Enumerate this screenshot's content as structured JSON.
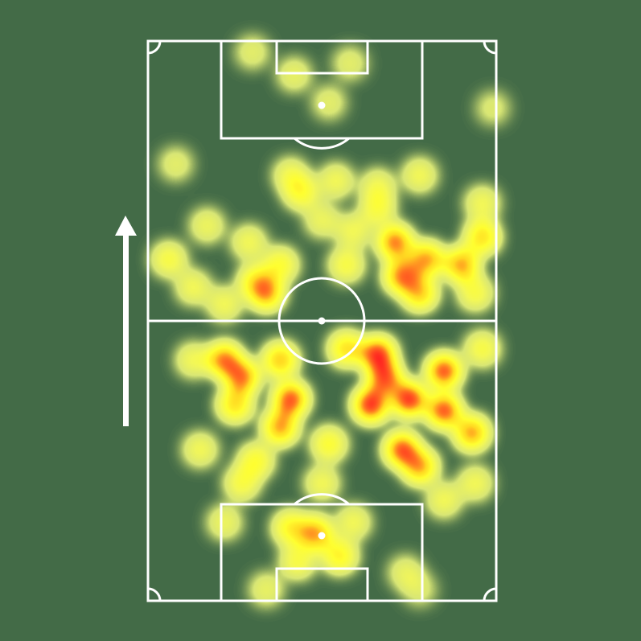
{
  "chart_data": {
    "type": "heatmap",
    "title": "",
    "xlabel": "",
    "ylabel": "",
    "xlim": [
      0,
      100
    ],
    "ylim": [
      0,
      100
    ],
    "grid": false,
    "direction_of_play": "up",
    "colors": {
      "background": "#436b47",
      "lines": "#ffffff",
      "low": "#e0ee78",
      "mid": "#ffff30",
      "high": "#ff9a20",
      "max": "#ff2020"
    },
    "points": [
      {
        "x": 30,
        "y": 98,
        "w": 0.7
      },
      {
        "x": 42,
        "y": 94,
        "w": 0.8
      },
      {
        "x": 58,
        "y": 96,
        "w": 0.7
      },
      {
        "x": 52,
        "y": 89,
        "w": 0.7
      },
      {
        "x": 99,
        "y": 88,
        "w": 0.6
      },
      {
        "x": 8,
        "y": 78,
        "w": 0.7
      },
      {
        "x": 41,
        "y": 76,
        "w": 1
      },
      {
        "x": 44,
        "y": 73,
        "w": 1.4
      },
      {
        "x": 54,
        "y": 75,
        "w": 1
      },
      {
        "x": 66,
        "y": 74,
        "w": 1
      },
      {
        "x": 78,
        "y": 76,
        "w": 1
      },
      {
        "x": 96,
        "y": 71,
        "w": 1
      },
      {
        "x": 17,
        "y": 67,
        "w": 0.9
      },
      {
        "x": 6,
        "y": 61,
        "w": 1.2
      },
      {
        "x": 29,
        "y": 64,
        "w": 1
      },
      {
        "x": 34,
        "y": 55,
        "w": 2.2
      },
      {
        "x": 31,
        "y": 57,
        "w": 1.6
      },
      {
        "x": 38,
        "y": 60,
        "w": 1.4
      },
      {
        "x": 59,
        "y": 66,
        "w": 1
      },
      {
        "x": 57,
        "y": 60,
        "w": 1.2
      },
      {
        "x": 71,
        "y": 64,
        "w": 2.4
      },
      {
        "x": 73,
        "y": 58,
        "w": 2.4
      },
      {
        "x": 78,
        "y": 55,
        "w": 2
      },
      {
        "x": 80,
        "y": 61,
        "w": 2.2
      },
      {
        "x": 90,
        "y": 60,
        "w": 2.2
      },
      {
        "x": 96,
        "y": 65,
        "w": 1.8
      },
      {
        "x": 94,
        "y": 55,
        "w": 1.2
      },
      {
        "x": 66,
        "y": 70,
        "w": 1.2
      },
      {
        "x": 50,
        "y": 68,
        "w": 0.9
      },
      {
        "x": 13,
        "y": 56,
        "w": 1
      },
      {
        "x": 22,
        "y": 53,
        "w": 1
      },
      {
        "x": 22,
        "y": 43,
        "w": 2.4
      },
      {
        "x": 27,
        "y": 40,
        "w": 2.4
      },
      {
        "x": 25,
        "y": 35,
        "w": 1.8
      },
      {
        "x": 38,
        "y": 43,
        "w": 2
      },
      {
        "x": 41,
        "y": 36,
        "w": 2.6
      },
      {
        "x": 38,
        "y": 31,
        "w": 2.2
      },
      {
        "x": 57,
        "y": 45,
        "w": 1.8
      },
      {
        "x": 66,
        "y": 44,
        "w": 2.8
      },
      {
        "x": 68,
        "y": 40,
        "w": 2.6
      },
      {
        "x": 64,
        "y": 35,
        "w": 2.8
      },
      {
        "x": 75,
        "y": 36,
        "w": 2.8
      },
      {
        "x": 85,
        "y": 41,
        "w": 2.6
      },
      {
        "x": 85,
        "y": 34,
        "w": 2.6
      },
      {
        "x": 93,
        "y": 30,
        "w": 2.2
      },
      {
        "x": 73,
        "y": 27,
        "w": 2.6
      },
      {
        "x": 78,
        "y": 24,
        "w": 2.2
      },
      {
        "x": 52,
        "y": 28,
        "w": 1.4
      },
      {
        "x": 31,
        "y": 25,
        "w": 1.4
      },
      {
        "x": 13,
        "y": 43,
        "w": 1
      },
      {
        "x": 15,
        "y": 27,
        "w": 1
      },
      {
        "x": 96,
        "y": 45,
        "w": 1.2
      },
      {
        "x": 94,
        "y": 21,
        "w": 1
      },
      {
        "x": 27,
        "y": 21,
        "w": 1.2
      },
      {
        "x": 50,
        "y": 21,
        "w": 1
      },
      {
        "x": 85,
        "y": 18,
        "w": 1
      },
      {
        "x": 41,
        "y": 13,
        "w": 1.6
      },
      {
        "x": 48,
        "y": 12,
        "w": 2.2
      },
      {
        "x": 55,
        "y": 8,
        "w": 1.6
      },
      {
        "x": 59,
        "y": 14,
        "w": 1
      },
      {
        "x": 22,
        "y": 14,
        "w": 0.9
      },
      {
        "x": 34,
        "y": 2,
        "w": 0.8
      },
      {
        "x": 74,
        "y": 5,
        "w": 0.8
      },
      {
        "x": 78,
        "y": 2,
        "w": 0.6
      },
      {
        "x": 43,
        "y": 7,
        "w": 1.2
      }
    ]
  }
}
